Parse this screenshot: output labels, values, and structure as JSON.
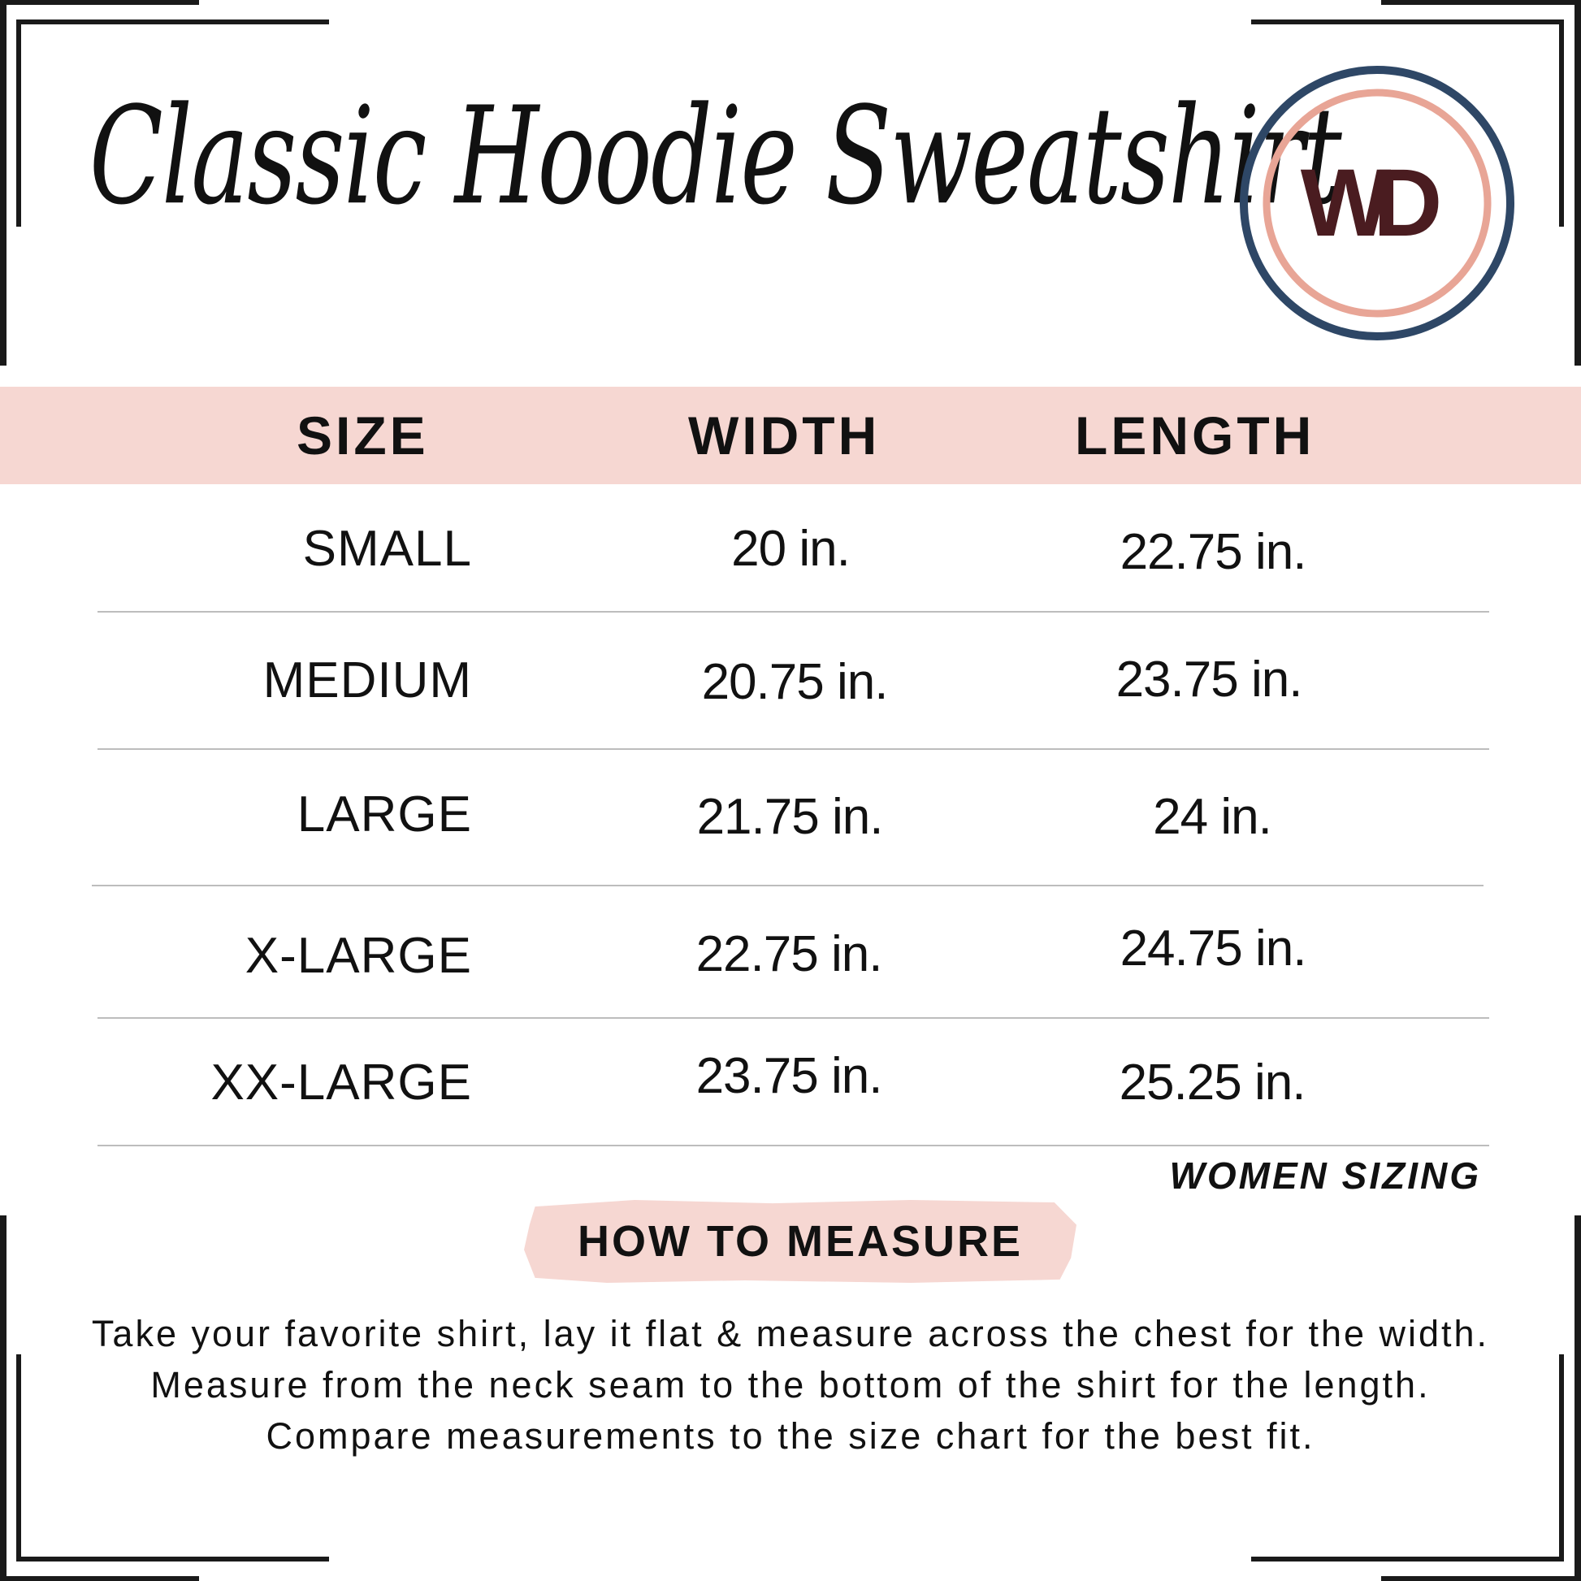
{
  "title": "Classic Hoodie Sweatshirt",
  "logo": {
    "letters": "WD",
    "outer_ring_color": "#2e4766",
    "inner_ring_color": "#e8a596",
    "letter_color": "#4a1c20"
  },
  "colors": {
    "band": "#f6d7d2",
    "text": "#111111",
    "frame": "#1a1a1a"
  },
  "table": {
    "headers": [
      "SIZE",
      "WIDTH",
      "LENGTH"
    ],
    "rows": [
      {
        "size": "SMALL",
        "width": "20 in.",
        "length": "22.75 in."
      },
      {
        "size": "MEDIUM",
        "width": "20.75 in.",
        "length": "23.75 in."
      },
      {
        "size": "LARGE",
        "width": "21.75 in.",
        "length": "24 in."
      },
      {
        "size": "X-LARGE",
        "width": "22.75 in.",
        "length": "24.75 in."
      },
      {
        "size": "XX-LARGE",
        "width": "23.75 in.",
        "length": "25.25 in."
      }
    ],
    "note": "WOMEN SIZING"
  },
  "how_to_measure": {
    "heading": "HOW TO MEASURE",
    "text": "Take your favorite shirt, lay it flat & measure across the chest for the width. Measure from the neck seam to the bottom of the shirt for the length. Compare measurements to the size chart for the best fit."
  }
}
